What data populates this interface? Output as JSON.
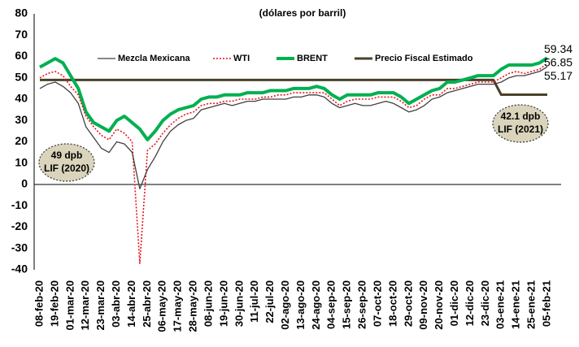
{
  "chart_data": {
    "type": "line",
    "subtitle": "(dólares por barril)",
    "categories": [
      "08-feb-20",
      null,
      "19-feb-20",
      null,
      "01-mar-20",
      null,
      "12-mar-20",
      null,
      "23-mar-20",
      null,
      "03-abr-20",
      null,
      "14-abr-20",
      null,
      "25-abr-20",
      null,
      "06-may-20",
      null,
      "17-may-20",
      null,
      "28-may-20",
      null,
      "08-jun-20",
      null,
      "19-jun-20",
      null,
      "30-jun-20",
      null,
      "11-jul-20",
      null,
      "22-jul-20",
      null,
      "02-ago-20",
      null,
      "13-ago-20",
      null,
      "24-ago-20",
      null,
      "04-sep-20",
      null,
      "15-sep-20",
      null,
      "26-sep-20",
      null,
      "07-oct-20",
      null,
      "18-oct-20",
      null,
      "29-oct-20",
      null,
      "09-nov-20",
      null,
      "20-nov-20",
      null,
      "01-dic-20",
      null,
      "12-dic-20",
      null,
      "23-dic-20",
      null,
      "03-ene-21",
      null,
      "14-ene-21",
      null,
      "25-ene-21",
      null,
      "05-feb-21"
    ],
    "series": [
      {
        "name": "Mezcla Mexicana",
        "color": "#404040",
        "values": [
          45,
          47,
          48,
          46,
          43,
          38,
          27,
          22,
          17,
          15,
          20,
          19,
          15,
          -2,
          7,
          13,
          20,
          25,
          28,
          30,
          31,
          35,
          36,
          37,
          38,
          37,
          38,
          39,
          39,
          40,
          40,
          40,
          40,
          41,
          41,
          42,
          42,
          41,
          38,
          36,
          37,
          38,
          37,
          37,
          38,
          39,
          38,
          36,
          34,
          35,
          37,
          40,
          41,
          43,
          44,
          45,
          46,
          47,
          47,
          47,
          48,
          50,
          51,
          51,
          52,
          53,
          55.17
        ]
      },
      {
        "name": "WTI",
        "color": "#e8141b",
        "values": [
          50,
          52,
          53,
          51,
          46,
          42,
          32,
          27,
          23,
          21,
          26,
          24,
          20,
          -37,
          16,
          19,
          24,
          28,
          31,
          33,
          34,
          37,
          38,
          38,
          39,
          39,
          40,
          40,
          40,
          41,
          41,
          42,
          42,
          43,
          43,
          43,
          43,
          43,
          40,
          37,
          39,
          40,
          40,
          40,
          41,
          41,
          41,
          39,
          36,
          37,
          40,
          42,
          42,
          45,
          45,
          46,
          47,
          48,
          48,
          48,
          50,
          52,
          53,
          52,
          53,
          54,
          56.85
        ]
      },
      {
        "name": "BRENT",
        "color": "#00b050",
        "values": [
          55,
          57,
          59,
          57,
          51,
          45,
          34,
          29,
          27,
          25,
          30,
          32,
          29,
          26,
          21,
          25,
          30,
          33,
          35,
          36,
          37,
          40,
          41,
          41,
          42,
          42,
          42,
          43,
          43,
          43,
          44,
          44,
          44,
          45,
          45,
          45,
          46,
          45,
          42,
          40,
          42,
          42,
          42,
          42,
          43,
          43,
          43,
          41,
          38,
          40,
          42,
          44,
          45,
          48,
          48,
          49,
          50,
          51,
          51,
          51,
          54,
          56,
          56,
          56,
          56,
          57,
          59.34
        ]
      },
      {
        "name": "Precio Fiscal Estimado",
        "color": "#4a4128",
        "values": [
          49,
          49,
          49,
          49,
          49,
          49,
          49,
          49,
          49,
          49,
          49,
          49,
          49,
          49,
          49,
          49,
          49,
          49,
          49,
          49,
          49,
          49,
          49,
          49,
          49,
          49,
          49,
          49,
          49,
          49,
          49,
          49,
          49,
          49,
          49,
          49,
          49,
          49,
          49,
          49,
          49,
          49,
          49,
          49,
          49,
          49,
          49,
          49,
          49,
          49,
          49,
          49,
          49,
          49,
          49,
          49,
          49,
          49,
          49,
          49,
          42.1,
          42.1,
          42.1,
          42.1,
          42.1,
          42.1,
          42.1
        ]
      }
    ],
    "ylim": [
      -40,
      80
    ],
    "yticks": [
      -40,
      -30,
      -20,
      -10,
      0,
      10,
      20,
      30,
      40,
      50,
      60,
      70,
      80
    ],
    "legend": "top",
    "annotations": [
      {
        "lines": [
          "49 dpb",
          "LIF (2020)"
        ]
      },
      {
        "lines": [
          "42.1 dpb",
          "LIF (2021)"
        ]
      }
    ]
  }
}
